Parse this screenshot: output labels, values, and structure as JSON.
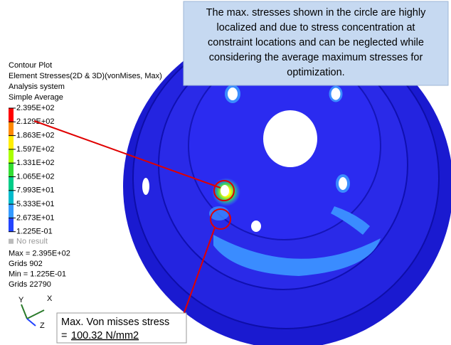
{
  "legend": {
    "header": [
      "Contour Plot",
      "Element Stresses(2D & 3D)(vonMises, Max)",
      "Analysis system",
      "Simple Average"
    ],
    "levels": [
      "2.395E+02",
      "2.129E+02",
      "1.863E+02",
      "1.597E+02",
      "1.331E+02",
      "1.065E+02",
      "7.993E+01",
      "5.333E+01",
      "2.673E+01",
      "1.225E-01"
    ],
    "no_result": "No result",
    "stats": [
      "Max = 2.395E+02",
      "Grids 902",
      "Min = 1.225E-01",
      "Grids 22790"
    ]
  },
  "triad": {
    "y": "Y",
    "x": "X",
    "z": "Z"
  },
  "top_note": [
    "The max. stresses shown in the circle are highly",
    "localized and due to stress concentration at",
    "constraint locations and can be neglected while",
    "considering the average maximum stresses for",
    "optimization."
  ],
  "bottom_note": {
    "line1": "Max. Von misses stress",
    "prefix": "=",
    "value": "100.32 N/mm2"
  }
}
